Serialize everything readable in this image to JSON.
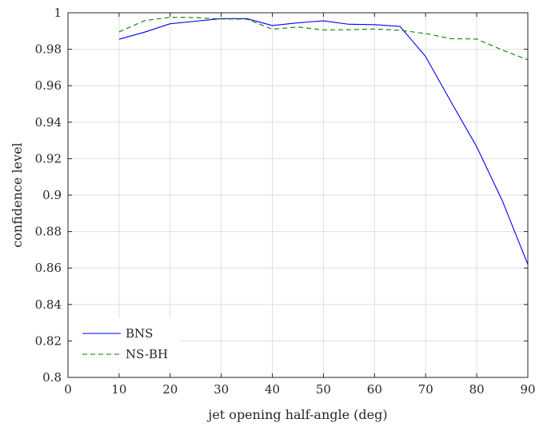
{
  "chart_data": {
    "type": "line",
    "title": "",
    "xlabel": "jet opening half-angle (deg)",
    "ylabel": "confidence level",
    "xlim": [
      0,
      90
    ],
    "ylim": [
      0.8,
      1
    ],
    "xticks": [
      0,
      10,
      20,
      30,
      40,
      50,
      60,
      70,
      80,
      90
    ],
    "xtick_labels": [
      "0",
      "10",
      "20",
      "30",
      "40",
      "50",
      "60",
      "70",
      "80",
      "90"
    ],
    "yticks": [
      0.8,
      0.82,
      0.84,
      0.86,
      0.88,
      0.9,
      0.92,
      0.94,
      0.96,
      0.98,
      1
    ],
    "ytick_labels": [
      "0.8",
      "0.82",
      "0.84",
      "0.86",
      "0.88",
      "0.9",
      "0.92",
      "0.94",
      "0.96",
      "0.98",
      "1"
    ],
    "grid": true,
    "legend_position": "bottom-left",
    "x": [
      10,
      15,
      20,
      25,
      30,
      35,
      40,
      45,
      50,
      55,
      60,
      65,
      70,
      75,
      80,
      85,
      90
    ],
    "series": [
      {
        "name": "BNS",
        "color": "#0000ff",
        "line_style": "solid",
        "values": [
          0.9855,
          0.9894,
          0.994,
          0.9954,
          0.9968,
          0.9968,
          0.993,
          0.9945,
          0.9956,
          0.9937,
          0.9935,
          0.9925,
          0.976,
          0.951,
          0.9265,
          0.897,
          0.862
        ]
      },
      {
        "name": "NS-BH",
        "color": "#008000",
        "line_style": "dashed",
        "values": [
          0.9895,
          0.9957,
          0.9975,
          0.9974,
          0.9966,
          0.9965,
          0.991,
          0.9922,
          0.9906,
          0.9907,
          0.9911,
          0.9904,
          0.9886,
          0.9858,
          0.9856,
          0.9796,
          0.9742
        ]
      }
    ]
  }
}
